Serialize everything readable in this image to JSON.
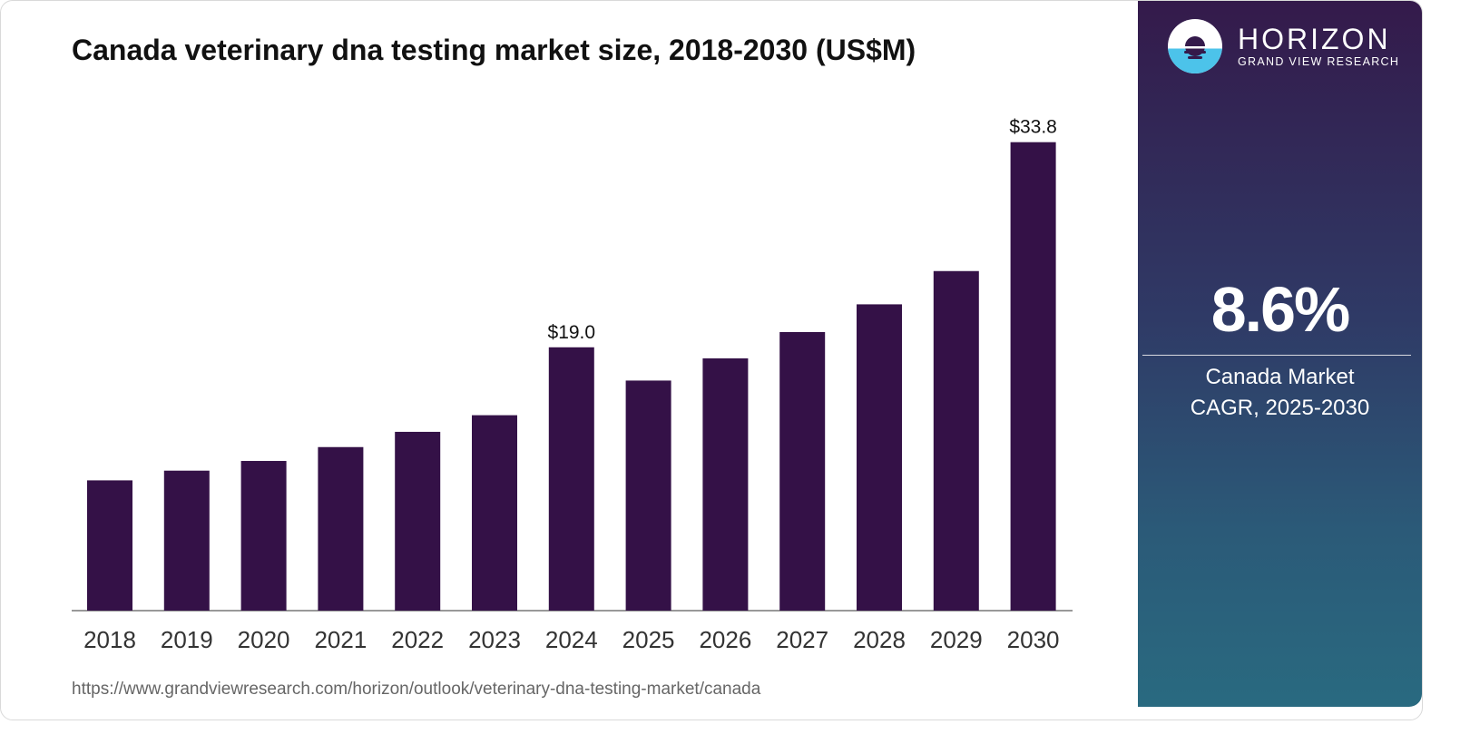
{
  "title": "Canada veterinary dna testing market size, 2018-2030 (US$M)",
  "source_url": "https://www.grandviewresearch.com/horizon/outlook/veterinary-dna-testing-market/canada",
  "brand": {
    "name": "HORIZON",
    "subtitle": "GRAND VIEW RESEARCH",
    "logo_icon": "sunset-horizon-icon"
  },
  "cagr": {
    "value": "8.6%",
    "label_line1": "Canada Market",
    "label_line2": "CAGR, 2025-2030"
  },
  "colors": {
    "bar": "#341147",
    "panel_top": "#341a4b",
    "panel_bottom": "#296a80",
    "logo_blue": "#4cc3ea"
  },
  "chart_data": {
    "type": "bar",
    "categories": [
      "2018",
      "2019",
      "2020",
      "2021",
      "2022",
      "2023",
      "2024",
      "2025",
      "2026",
      "2027",
      "2028",
      "2029",
      "2030"
    ],
    "values": [
      9.4,
      10.1,
      10.8,
      11.8,
      12.9,
      14.1,
      19.0,
      16.6,
      18.2,
      20.1,
      22.1,
      24.5,
      33.8
    ],
    "data_labels": [
      {
        "category": "2024",
        "text": "$19.0"
      },
      {
        "category": "2030",
        "text": "$33.8"
      }
    ],
    "ylim": [
      0,
      34.5
    ],
    "grid": false,
    "legend": "none"
  }
}
